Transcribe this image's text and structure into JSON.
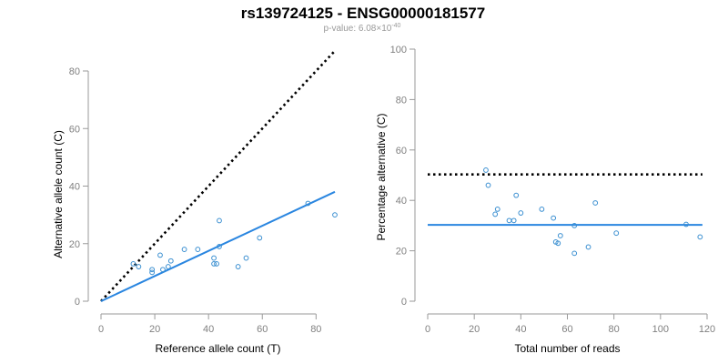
{
  "title": "rs139724125 - ENSG00000181577",
  "subtitle": {
    "prefix": "p-value: 6.08×10",
    "exponent": "-40"
  },
  "colors": {
    "points": "#3a8fd1",
    "fit": "#2a86e0",
    "reference": "#000000"
  },
  "chart_data": [
    {
      "type": "scatter",
      "xlabel": "Reference allele count (T)",
      "ylabel": "Alternative allele count (C)",
      "xlim": [
        0,
        87
      ],
      "ylim": [
        0,
        80
      ],
      "xticks": [
        0,
        20,
        40,
        60,
        80
      ],
      "yticks": [
        0,
        20,
        40,
        60,
        80
      ],
      "points": [
        {
          "x": 12,
          "y": 13
        },
        {
          "x": 14,
          "y": 12
        },
        {
          "x": 19,
          "y": 11
        },
        {
          "x": 19,
          "y": 10
        },
        {
          "x": 22,
          "y": 16
        },
        {
          "x": 23,
          "y": 11
        },
        {
          "x": 25,
          "y": 12
        },
        {
          "x": 26,
          "y": 14
        },
        {
          "x": 31,
          "y": 18
        },
        {
          "x": 36,
          "y": 18
        },
        {
          "x": 42,
          "y": 15
        },
        {
          "x": 42,
          "y": 13
        },
        {
          "x": 43,
          "y": 13
        },
        {
          "x": 44,
          "y": 19
        },
        {
          "x": 44,
          "y": 28
        },
        {
          "x": 51,
          "y": 12
        },
        {
          "x": 54,
          "y": 15
        },
        {
          "x": 59,
          "y": 22
        },
        {
          "x": 77,
          "y": 34
        },
        {
          "x": 87,
          "y": 30
        }
      ],
      "fit_line": [
        [
          0,
          0
        ],
        [
          87,
          38
        ]
      ],
      "reference_line": [
        [
          0,
          0
        ],
        [
          87,
          87
        ]
      ],
      "grid": false
    },
    {
      "type": "scatter",
      "xlabel": "Total number of reads",
      "ylabel": "Percentage alternative (C)",
      "xlim": [
        0,
        120
      ],
      "ylim": [
        0,
        100
      ],
      "xticks": [
        0,
        20,
        40,
        60,
        80,
        100,
        120
      ],
      "yticks": [
        0,
        20,
        40,
        60,
        80,
        100
      ],
      "points": [
        {
          "x": 25,
          "y": 52
        },
        {
          "x": 26,
          "y": 46
        },
        {
          "x": 29,
          "y": 34.5
        },
        {
          "x": 30,
          "y": 36.5
        },
        {
          "x": 35,
          "y": 32
        },
        {
          "x": 37,
          "y": 32
        },
        {
          "x": 38,
          "y": 42
        },
        {
          "x": 40,
          "y": 35
        },
        {
          "x": 49,
          "y": 36.5
        },
        {
          "x": 54,
          "y": 33
        },
        {
          "x": 55,
          "y": 23.5
        },
        {
          "x": 56,
          "y": 23
        },
        {
          "x": 57,
          "y": 26
        },
        {
          "x": 63,
          "y": 19
        },
        {
          "x": 63,
          "y": 30
        },
        {
          "x": 69,
          "y": 21.5
        },
        {
          "x": 72,
          "y": 39
        },
        {
          "x": 81,
          "y": 27
        },
        {
          "x": 111,
          "y": 30.5
        },
        {
          "x": 117,
          "y": 25.5
        }
      ],
      "fit_line": [
        [
          0,
          30.3
        ],
        [
          118,
          30.3
        ]
      ],
      "reference_line": [
        [
          0,
          50.3
        ],
        [
          118,
          50.3
        ]
      ],
      "grid": false
    }
  ]
}
